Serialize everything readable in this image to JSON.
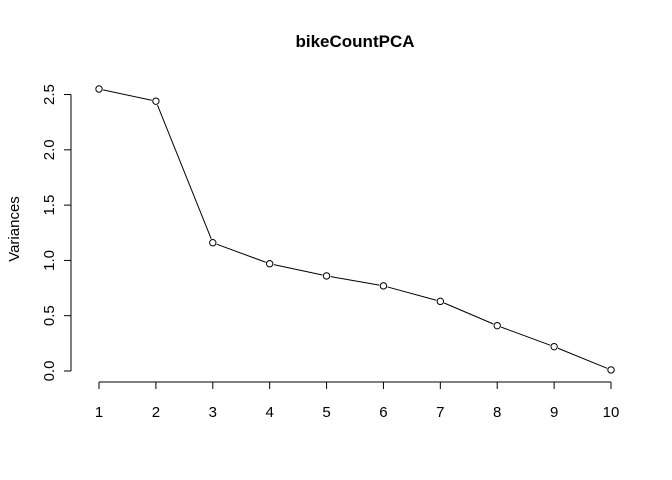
{
  "chart_data": {
    "type": "line",
    "title": "bikeCountPCA",
    "xlabel": "",
    "ylabel": "Variances",
    "x": [
      1,
      2,
      3,
      4,
      5,
      6,
      7,
      8,
      9,
      10
    ],
    "x_tick_labels": [
      "1",
      "2",
      "3",
      "4",
      "5",
      "6",
      "7",
      "8",
      "9",
      "10"
    ],
    "y_ticks": [
      0.0,
      0.5,
      1.0,
      1.5,
      2.0,
      2.5
    ],
    "y_tick_labels": [
      "0.0",
      "0.5",
      "1.0",
      "1.5",
      "2.0",
      "2.5"
    ],
    "series": [
      {
        "values": [
          2.55,
          2.44,
          1.16,
          0.97,
          0.86,
          0.77,
          0.63,
          0.41,
          0.22,
          0.01
        ]
      }
    ],
    "xlim": [
      1,
      10
    ],
    "ylim": [
      0,
      2.55
    ],
    "markers": "open-circle",
    "grid": false,
    "legend": "none",
    "colors": {
      "line": "#000000",
      "marker_fill": "#ffffff",
      "text": "#000000"
    }
  }
}
